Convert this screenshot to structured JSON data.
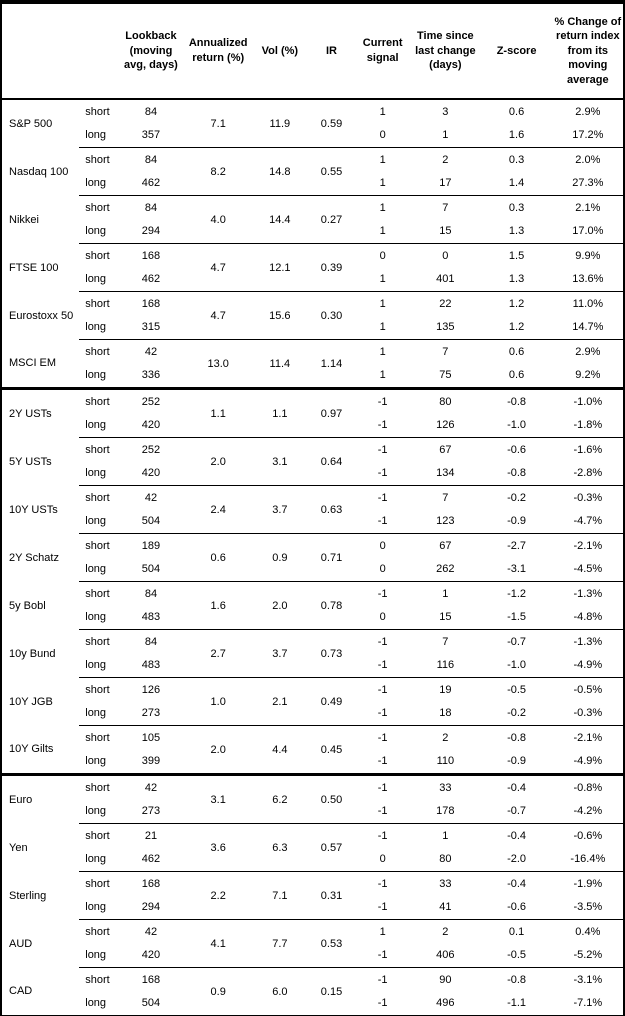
{
  "colors": {
    "text": "#000000",
    "background": "#ffffff",
    "border": "#000000"
  },
  "table": {
    "columns": [
      "Lookback\n(moving\navg, days)",
      "Annualized\nreturn (%)",
      "Vol (%)",
      "IR",
      "Current\nsignal",
      "Time since\nlast change\n(days)",
      "Z-score",
      "% Change of\nreturn index\nfrom its\nmoving\naverage"
    ],
    "row_labels": {
      "short": "short",
      "long": "long"
    },
    "sections": [
      {
        "groups": [
          {
            "name": "S&P 500",
            "annualized_return": "7.1",
            "vol": "11.9",
            "ir": "0.59",
            "rows": [
              {
                "horizon": "short",
                "lookback": "84",
                "current_signal": "1",
                "time_since_change": "3",
                "z_score": "0.6",
                "pct_change": "2.9%"
              },
              {
                "horizon": "long",
                "lookback": "357",
                "current_signal": "0",
                "time_since_change": "1",
                "z_score": "1.6",
                "pct_change": "17.2%"
              }
            ]
          },
          {
            "name": "Nasdaq 100",
            "annualized_return": "8.2",
            "vol": "14.8",
            "ir": "0.55",
            "rows": [
              {
                "horizon": "short",
                "lookback": "84",
                "current_signal": "1",
                "time_since_change": "2",
                "z_score": "0.3",
                "pct_change": "2.0%"
              },
              {
                "horizon": "long",
                "lookback": "462",
                "current_signal": "1",
                "time_since_change": "17",
                "z_score": "1.4",
                "pct_change": "27.3%"
              }
            ]
          },
          {
            "name": "Nikkei",
            "annualized_return": "4.0",
            "vol": "14.4",
            "ir": "0.27",
            "rows": [
              {
                "horizon": "short",
                "lookback": "84",
                "current_signal": "1",
                "time_since_change": "7",
                "z_score": "0.3",
                "pct_change": "2.1%"
              },
              {
                "horizon": "long",
                "lookback": "294",
                "current_signal": "1",
                "time_since_change": "15",
                "z_score": "1.3",
                "pct_change": "17.0%"
              }
            ]
          },
          {
            "name": "FTSE 100",
            "annualized_return": "4.7",
            "vol": "12.1",
            "ir": "0.39",
            "rows": [
              {
                "horizon": "short",
                "lookback": "168",
                "current_signal": "0",
                "time_since_change": "0",
                "z_score": "1.5",
                "pct_change": "9.9%"
              },
              {
                "horizon": "long",
                "lookback": "462",
                "current_signal": "1",
                "time_since_change": "401",
                "z_score": "1.3",
                "pct_change": "13.6%"
              }
            ]
          },
          {
            "name": "Eurostoxx 50",
            "annualized_return": "4.7",
            "vol": "15.6",
            "ir": "0.30",
            "rows": [
              {
                "horizon": "short",
                "lookback": "168",
                "current_signal": "1",
                "time_since_change": "22",
                "z_score": "1.2",
                "pct_change": "11.0%"
              },
              {
                "horizon": "long",
                "lookback": "315",
                "current_signal": "1",
                "time_since_change": "135",
                "z_score": "1.2",
                "pct_change": "14.7%"
              }
            ]
          },
          {
            "name": "MSCI EM",
            "annualized_return": "13.0",
            "vol": "11.4",
            "ir": "1.14",
            "rows": [
              {
                "horizon": "short",
                "lookback": "42",
                "current_signal": "1",
                "time_since_change": "7",
                "z_score": "0.6",
                "pct_change": "2.9%"
              },
              {
                "horizon": "long",
                "lookback": "336",
                "current_signal": "1",
                "time_since_change": "75",
                "z_score": "0.6",
                "pct_change": "9.2%"
              }
            ]
          }
        ]
      },
      {
        "groups": [
          {
            "name": "2Y USTs",
            "annualized_return": "1.1",
            "vol": "1.1",
            "ir": "0.97",
            "rows": [
              {
                "horizon": "short",
                "lookback": "252",
                "current_signal": "-1",
                "time_since_change": "80",
                "z_score": "-0.8",
                "pct_change": "-1.0%"
              },
              {
                "horizon": "long",
                "lookback": "420",
                "current_signal": "-1",
                "time_since_change": "126",
                "z_score": "-1.0",
                "pct_change": "-1.8%"
              }
            ]
          },
          {
            "name": "5Y USTs",
            "annualized_return": "2.0",
            "vol": "3.1",
            "ir": "0.64",
            "rows": [
              {
                "horizon": "short",
                "lookback": "252",
                "current_signal": "-1",
                "time_since_change": "67",
                "z_score": "-0.6",
                "pct_change": "-1.6%"
              },
              {
                "horizon": "long",
                "lookback": "420",
                "current_signal": "-1",
                "time_since_change": "134",
                "z_score": "-0.8",
                "pct_change": "-2.8%"
              }
            ]
          },
          {
            "name": "10Y USTs",
            "annualized_return": "2.4",
            "vol": "3.7",
            "ir": "0.63",
            "rows": [
              {
                "horizon": "short",
                "lookback": "42",
                "current_signal": "-1",
                "time_since_change": "7",
                "z_score": "-0.2",
                "pct_change": "-0.3%"
              },
              {
                "horizon": "long",
                "lookback": "504",
                "current_signal": "-1",
                "time_since_change": "123",
                "z_score": "-0.9",
                "pct_change": "-4.7%"
              }
            ]
          },
          {
            "name": "2Y Schatz",
            "annualized_return": "0.6",
            "vol": "0.9",
            "ir": "0.71",
            "rows": [
              {
                "horizon": "short",
                "lookback": "189",
                "current_signal": "0",
                "time_since_change": "67",
                "z_score": "-2.7",
                "pct_change": "-2.1%"
              },
              {
                "horizon": "long",
                "lookback": "504",
                "current_signal": "0",
                "time_since_change": "262",
                "z_score": "-3.1",
                "pct_change": "-4.5%"
              }
            ]
          },
          {
            "name": "5y Bobl",
            "annualized_return": "1.6",
            "vol": "2.0",
            "ir": "0.78",
            "rows": [
              {
                "horizon": "short",
                "lookback": "84",
                "current_signal": "-1",
                "time_since_change": "1",
                "z_score": "-1.2",
                "pct_change": "-1.3%"
              },
              {
                "horizon": "long",
                "lookback": "483",
                "current_signal": "0",
                "time_since_change": "15",
                "z_score": "-1.5",
                "pct_change": "-4.8%"
              }
            ]
          },
          {
            "name": "10y Bund",
            "annualized_return": "2.7",
            "vol": "3.7",
            "ir": "0.73",
            "rows": [
              {
                "horizon": "short",
                "lookback": "84",
                "current_signal": "-1",
                "time_since_change": "7",
                "z_score": "-0.7",
                "pct_change": "-1.3%"
              },
              {
                "horizon": "long",
                "lookback": "483",
                "current_signal": "-1",
                "time_since_change": "116",
                "z_score": "-1.0",
                "pct_change": "-4.9%"
              }
            ]
          },
          {
            "name": "10Y JGB",
            "annualized_return": "1.0",
            "vol": "2.1",
            "ir": "0.49",
            "rows": [
              {
                "horizon": "short",
                "lookback": "126",
                "current_signal": "-1",
                "time_since_change": "19",
                "z_score": "-0.5",
                "pct_change": "-0.5%"
              },
              {
                "horizon": "long",
                "lookback": "273",
                "current_signal": "-1",
                "time_since_change": "18",
                "z_score": "-0.2",
                "pct_change": "-0.3%"
              }
            ]
          },
          {
            "name": "10Y Gilts",
            "annualized_return": "2.0",
            "vol": "4.4",
            "ir": "0.45",
            "rows": [
              {
                "horizon": "short",
                "lookback": "105",
                "current_signal": "-1",
                "time_since_change": "2",
                "z_score": "-0.8",
                "pct_change": "-2.1%"
              },
              {
                "horizon": "long",
                "lookback": "399",
                "current_signal": "-1",
                "time_since_change": "110",
                "z_score": "-0.9",
                "pct_change": "-4.9%"
              }
            ]
          }
        ]
      },
      {
        "groups": [
          {
            "name": "Euro",
            "annualized_return": "3.1",
            "vol": "6.2",
            "ir": "0.50",
            "rows": [
              {
                "horizon": "short",
                "lookback": "42",
                "current_signal": "-1",
                "time_since_change": "33",
                "z_score": "-0.4",
                "pct_change": "-0.8%"
              },
              {
                "horizon": "long",
                "lookback": "273",
                "current_signal": "-1",
                "time_since_change": "178",
                "z_score": "-0.7",
                "pct_change": "-4.2%"
              }
            ]
          },
          {
            "name": "Yen",
            "annualized_return": "3.6",
            "vol": "6.3",
            "ir": "0.57",
            "rows": [
              {
                "horizon": "short",
                "lookback": "21",
                "current_signal": "-1",
                "time_since_change": "1",
                "z_score": "-0.4",
                "pct_change": "-0.6%"
              },
              {
                "horizon": "long",
                "lookback": "462",
                "current_signal": "0",
                "time_since_change": "80",
                "z_score": "-2.0",
                "pct_change": "-16.4%"
              }
            ]
          },
          {
            "name": "Sterling",
            "annualized_return": "2.2",
            "vol": "7.1",
            "ir": "0.31",
            "rows": [
              {
                "horizon": "short",
                "lookback": "168",
                "current_signal": "-1",
                "time_since_change": "33",
                "z_score": "-0.4",
                "pct_change": "-1.9%"
              },
              {
                "horizon": "long",
                "lookback": "294",
                "current_signal": "-1",
                "time_since_change": "41",
                "z_score": "-0.6",
                "pct_change": "-3.5%"
              }
            ]
          },
          {
            "name": "AUD",
            "annualized_return": "4.1",
            "vol": "7.7",
            "ir": "0.53",
            "rows": [
              {
                "horizon": "short",
                "lookback": "42",
                "current_signal": "1",
                "time_since_change": "2",
                "z_score": "0.1",
                "pct_change": "0.4%"
              },
              {
                "horizon": "long",
                "lookback": "420",
                "current_signal": "-1",
                "time_since_change": "406",
                "z_score": "-0.5",
                "pct_change": "-5.2%"
              }
            ]
          },
          {
            "name": "CAD",
            "annualized_return": "0.9",
            "vol": "6.0",
            "ir": "0.15",
            "rows": [
              {
                "horizon": "short",
                "lookback": "168",
                "current_signal": "-1",
                "time_since_change": "90",
                "z_score": "-0.8",
                "pct_change": "-3.1%"
              },
              {
                "horizon": "long",
                "lookback": "504",
                "current_signal": "-1",
                "time_since_change": "496",
                "z_score": "-1.1",
                "pct_change": "-7.1%"
              }
            ]
          }
        ]
      }
    ]
  }
}
